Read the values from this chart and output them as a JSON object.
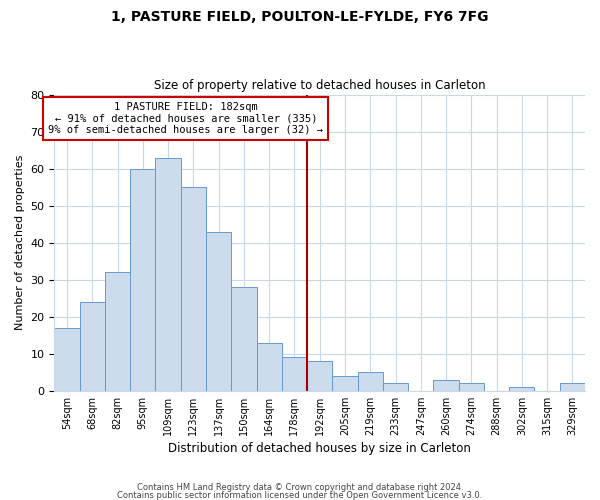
{
  "title": "1, PASTURE FIELD, POULTON-LE-FYLDE, FY6 7FG",
  "subtitle": "Size of property relative to detached houses in Carleton",
  "xlabel": "Distribution of detached houses by size in Carleton",
  "ylabel": "Number of detached properties",
  "bar_labels": [
    "54sqm",
    "68sqm",
    "82sqm",
    "95sqm",
    "109sqm",
    "123sqm",
    "137sqm",
    "150sqm",
    "164sqm",
    "178sqm",
    "192sqm",
    "205sqm",
    "219sqm",
    "233sqm",
    "247sqm",
    "260sqm",
    "274sqm",
    "288sqm",
    "302sqm",
    "315sqm",
    "329sqm"
  ],
  "bar_values": [
    17,
    24,
    32,
    60,
    63,
    55,
    43,
    28,
    13,
    9,
    8,
    4,
    5,
    2,
    0,
    3,
    2,
    0,
    1,
    0,
    2
  ],
  "bar_color": "#ccdcec",
  "bar_edge_color": "#6699cc",
  "vline_x": 9.5,
  "vline_color": "#aa0000",
  "annotation_line1": "1 PASTURE FIELD: 182sqm",
  "annotation_line2": "← 91% of detached houses are smaller (335)",
  "annotation_line3": "9% of semi-detached houses are larger (32) →",
  "annotation_box_edge": "#cc0000",
  "ylim": [
    0,
    80
  ],
  "yticks": [
    0,
    10,
    20,
    30,
    40,
    50,
    60,
    70,
    80
  ],
  "footer_line1": "Contains HM Land Registry data © Crown copyright and database right 2024.",
  "footer_line2": "Contains public sector information licensed under the Open Government Licence v3.0.",
  "background_color": "#ffffff",
  "grid_color": "#c8d8e8"
}
